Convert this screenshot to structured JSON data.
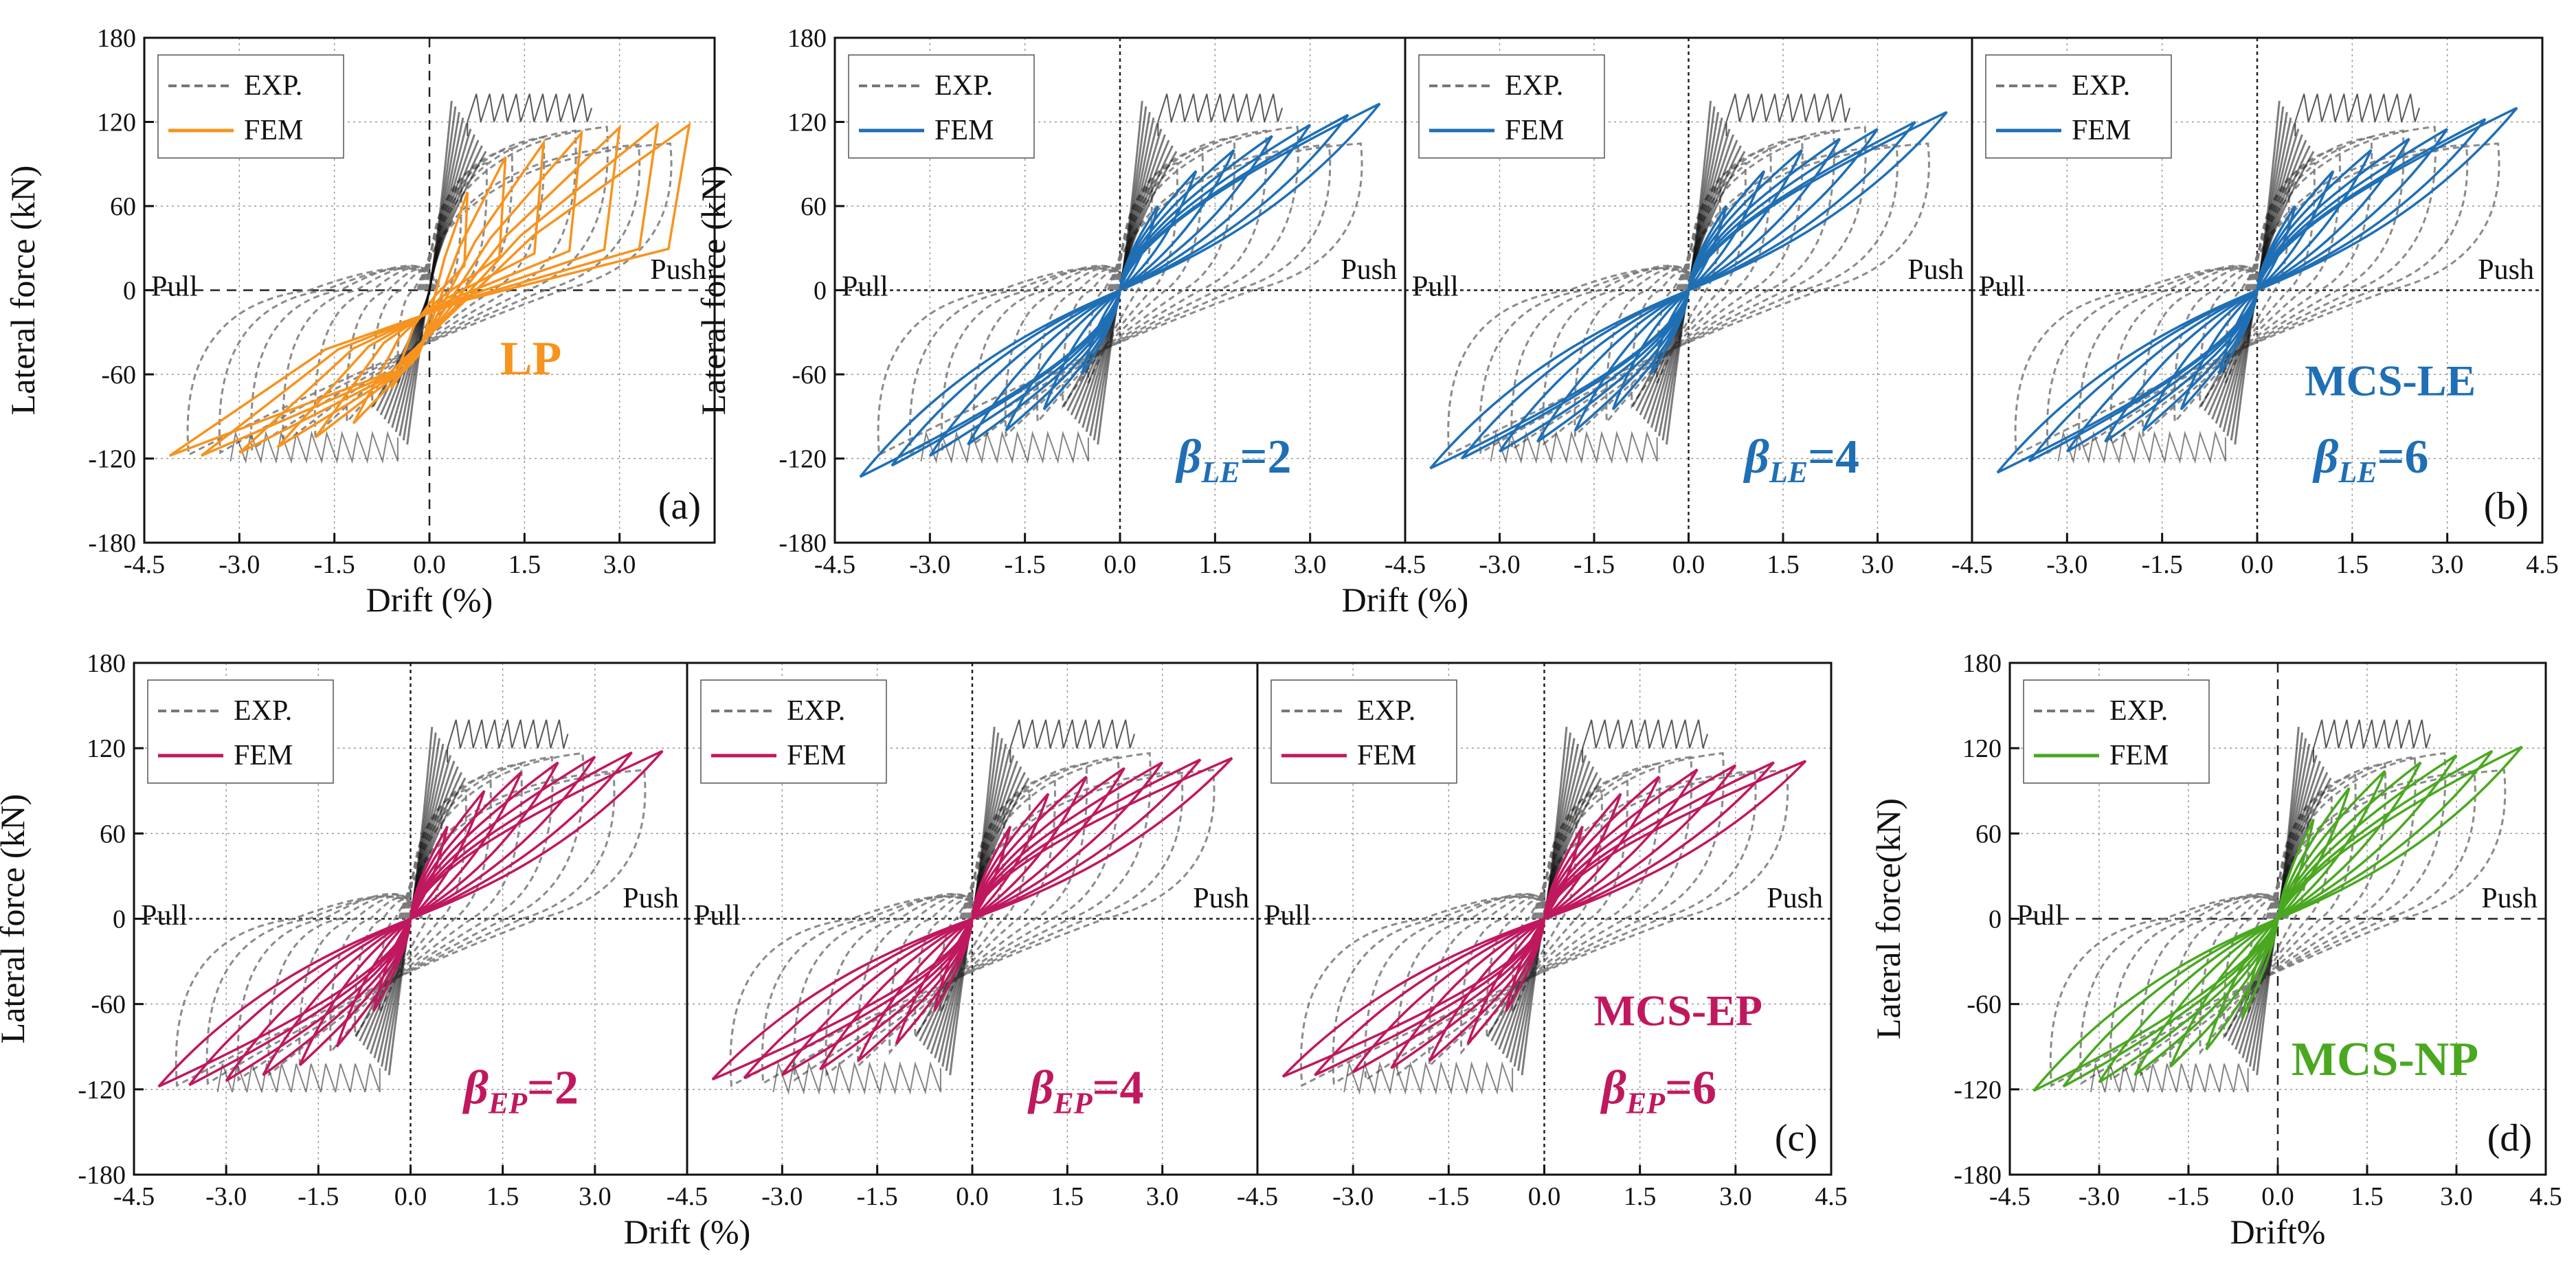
{
  "figure": {
    "description_labels": [
      "(a)",
      "(b)",
      "(c)",
      "(d)"
    ]
  },
  "chart_data": [
    {
      "id": "a",
      "type": "line",
      "panel_label": "(a)",
      "title": "",
      "annotation": "LP",
      "annotation_color": "#f7931e",
      "xlabel": "Drift (%)",
      "ylabel": "Lateral force (kN)",
      "xlim": [
        -4.5,
        4.5
      ],
      "ylim": [
        -180,
        180
      ],
      "xticks": [
        "-4.5",
        "-3.0",
        "-1.5",
        "0.0",
        "1.5",
        "3.0"
      ],
      "yticks": [
        "-180",
        "-120",
        "-60",
        "0",
        "60",
        "120",
        "180"
      ],
      "side_labels": {
        "left": "Pull",
        "right": "Push"
      },
      "legend": {
        "position": "top-left",
        "entries": [
          "EXP.",
          "FEM"
        ]
      },
      "fem_color": "#f7931e",
      "envelope": {
        "drift": [
          0.6,
          1.2,
          1.8,
          2.4,
          3.0,
          3.6,
          4.1
        ],
        "force": [
          70,
          95,
          105,
          112,
          116,
          118,
          118
        ]
      },
      "experiment_peak": {
        "push_kN": 140,
        "pull_kN": -125
      }
    },
    {
      "id": "b1",
      "type": "line",
      "panel_label": "",
      "annotation": "β",
      "annotation_sub": "LE",
      "annotation_value": "=2",
      "annotation_color": "#1f6fb5",
      "xlabel": "",
      "ylabel": "Lateral force (kN)",
      "xlim": [
        -4.5,
        4.5
      ],
      "ylim": [
        -180,
        180
      ],
      "xticks": [
        "-4.5",
        "-3.0",
        "-1.5",
        "0.0",
        "1.5",
        "3.0"
      ],
      "yticks": [
        "-180",
        "-120",
        "-60",
        "0",
        "60",
        "120",
        "180"
      ],
      "side_labels": {
        "left": "Pull",
        "right": "Push"
      },
      "legend": {
        "position": "top-left",
        "entries": [
          "EXP.",
          "FEM"
        ]
      },
      "fem_color": "#1f6fb5",
      "envelope": {
        "drift": [
          0.6,
          1.2,
          1.8,
          2.4,
          3.0,
          3.6,
          4.1
        ],
        "force": [
          60,
          85,
          100,
          110,
          118,
          125,
          133
        ]
      }
    },
    {
      "id": "b2",
      "type": "line",
      "panel_label": "",
      "annotation": "β",
      "annotation_sub": "LE",
      "annotation_value": "=4",
      "annotation_color": "#1f6fb5",
      "xlabel": "Drift (%)",
      "ylabel": "",
      "xlim": [
        -4.5,
        4.5
      ],
      "ylim": [
        -180,
        180
      ],
      "xticks": [
        "-4.5",
        "-3.0",
        "-1.5",
        "0.0",
        "1.5",
        "3.0"
      ],
      "yticks": [],
      "side_labels": {
        "left": "Pull",
        "right": "Push"
      },
      "legend": {
        "position": "top-left",
        "entries": [
          "EXP.",
          "FEM"
        ]
      },
      "fem_color": "#1f6fb5",
      "envelope": {
        "drift": [
          0.6,
          1.2,
          1.8,
          2.4,
          3.0,
          3.6,
          4.1
        ],
        "force": [
          60,
          85,
          100,
          108,
          115,
          120,
          127
        ]
      }
    },
    {
      "id": "b3",
      "type": "line",
      "panel_label": "(b)",
      "annotation": "β",
      "annotation_sub": "LE",
      "annotation_value": "=6",
      "annotation_color": "#1f6fb5",
      "annotation_title": "MCS-LE",
      "xlabel": "",
      "ylabel": "",
      "xlim": [
        -4.5,
        4.5
      ],
      "ylim": [
        -180,
        180
      ],
      "xticks": [
        "-4.5",
        "-3.0",
        "-1.5",
        "0.0",
        "1.5",
        "3.0",
        "4.5"
      ],
      "yticks": [],
      "side_labels": {
        "left": "Pull",
        "right": "Push"
      },
      "legend": {
        "position": "top-left",
        "entries": [
          "EXP.",
          "FEM"
        ]
      },
      "fem_color": "#1f6fb5",
      "envelope": {
        "drift": [
          0.6,
          1.2,
          1.8,
          2.4,
          3.0,
          3.6,
          4.1
        ],
        "force": [
          60,
          85,
          100,
          108,
          115,
          122,
          130
        ]
      }
    },
    {
      "id": "c1",
      "type": "line",
      "panel_label": "",
      "annotation": "β",
      "annotation_sub": "EP",
      "annotation_value": "=2",
      "annotation_color": "#c0185e",
      "xlabel": "",
      "ylabel": "Lateral force (kN)",
      "xlim": [
        -4.5,
        4.5
      ],
      "ylim": [
        -180,
        180
      ],
      "xticks": [
        "-4.5",
        "-3.0",
        "-1.5",
        "0.0",
        "1.5",
        "3.0"
      ],
      "yticks": [
        "-180",
        "-120",
        "-60",
        "0",
        "60",
        "120",
        "180"
      ],
      "side_labels": {
        "left": "Pull",
        "right": "Push"
      },
      "legend": {
        "position": "top-left",
        "entries": [
          "EXP.",
          "FEM"
        ]
      },
      "fem_color": "#c0185e",
      "envelope": {
        "drift": [
          0.6,
          1.2,
          1.8,
          2.4,
          3.0,
          3.6,
          4.1
        ],
        "force": [
          65,
          90,
          103,
          110,
          114,
          117,
          118
        ]
      }
    },
    {
      "id": "c2",
      "type": "line",
      "panel_label": "",
      "annotation": "β",
      "annotation_sub": "EP",
      "annotation_value": "=4",
      "annotation_color": "#c0185e",
      "xlabel": "Drift (%)",
      "ylabel": "",
      "xlim": [
        -4.5,
        4.5
      ],
      "ylim": [
        -180,
        180
      ],
      "xticks": [
        "-4.5",
        "-3.0",
        "-1.5",
        "0.0",
        "1.5",
        "3.0"
      ],
      "yticks": [],
      "side_labels": {
        "left": "Pull",
        "right": "Push"
      },
      "legend": {
        "position": "top-left",
        "entries": [
          "EXP.",
          "FEM"
        ]
      },
      "fem_color": "#c0185e",
      "envelope": {
        "drift": [
          0.6,
          1.2,
          1.8,
          2.4,
          3.0,
          3.6,
          4.1
        ],
        "force": [
          65,
          88,
          100,
          106,
          110,
          112,
          113
        ]
      }
    },
    {
      "id": "c3",
      "type": "line",
      "panel_label": "(c)",
      "annotation": "β",
      "annotation_sub": "EP",
      "annotation_value": "=6",
      "annotation_color": "#c0185e",
      "annotation_title": "MCS-EP",
      "xlabel": "",
      "ylabel": "",
      "xlim": [
        -4.5,
        4.5
      ],
      "ylim": [
        -180,
        180
      ],
      "xticks": [
        "-4.5",
        "-3.0",
        "-1.5",
        "0.0",
        "1.5",
        "3.0",
        "4.5"
      ],
      "yticks": [],
      "side_labels": {
        "left": "Pull",
        "right": "Push"
      },
      "legend": {
        "position": "top-left",
        "entries": [
          "EXP.",
          "FEM"
        ]
      },
      "fem_color": "#c0185e",
      "envelope": {
        "drift": [
          0.6,
          1.2,
          1.8,
          2.4,
          3.0,
          3.6,
          4.1
        ],
        "force": [
          65,
          88,
          100,
          105,
          108,
          110,
          111
        ]
      }
    },
    {
      "id": "d",
      "type": "line",
      "panel_label": "(d)",
      "annotation": "MCS-NP",
      "annotation_color": "#4aa820",
      "xlabel": "Drift%",
      "ylabel": "Lateral force(kN)",
      "xlim": [
        -4.5,
        4.5
      ],
      "ylim": [
        -180,
        180
      ],
      "xticks": [
        "-4.5",
        "-3.0",
        "-1.5",
        "0.0",
        "1.5",
        "3.0",
        "4.5"
      ],
      "yticks": [
        "-180",
        "-120",
        "-60",
        "0",
        "60",
        "120",
        "180"
      ],
      "side_labels": {
        "left": "Pull",
        "right": "Push"
      },
      "legend": {
        "position": "top-left",
        "entries": [
          "EXP.",
          "FEM"
        ]
      },
      "fem_color": "#4aa820",
      "envelope": {
        "drift": [
          0.6,
          1.2,
          1.8,
          2.4,
          3.0,
          3.6,
          4.1
        ],
        "force": [
          70,
          92,
          104,
          110,
          115,
          118,
          121
        ]
      }
    }
  ]
}
